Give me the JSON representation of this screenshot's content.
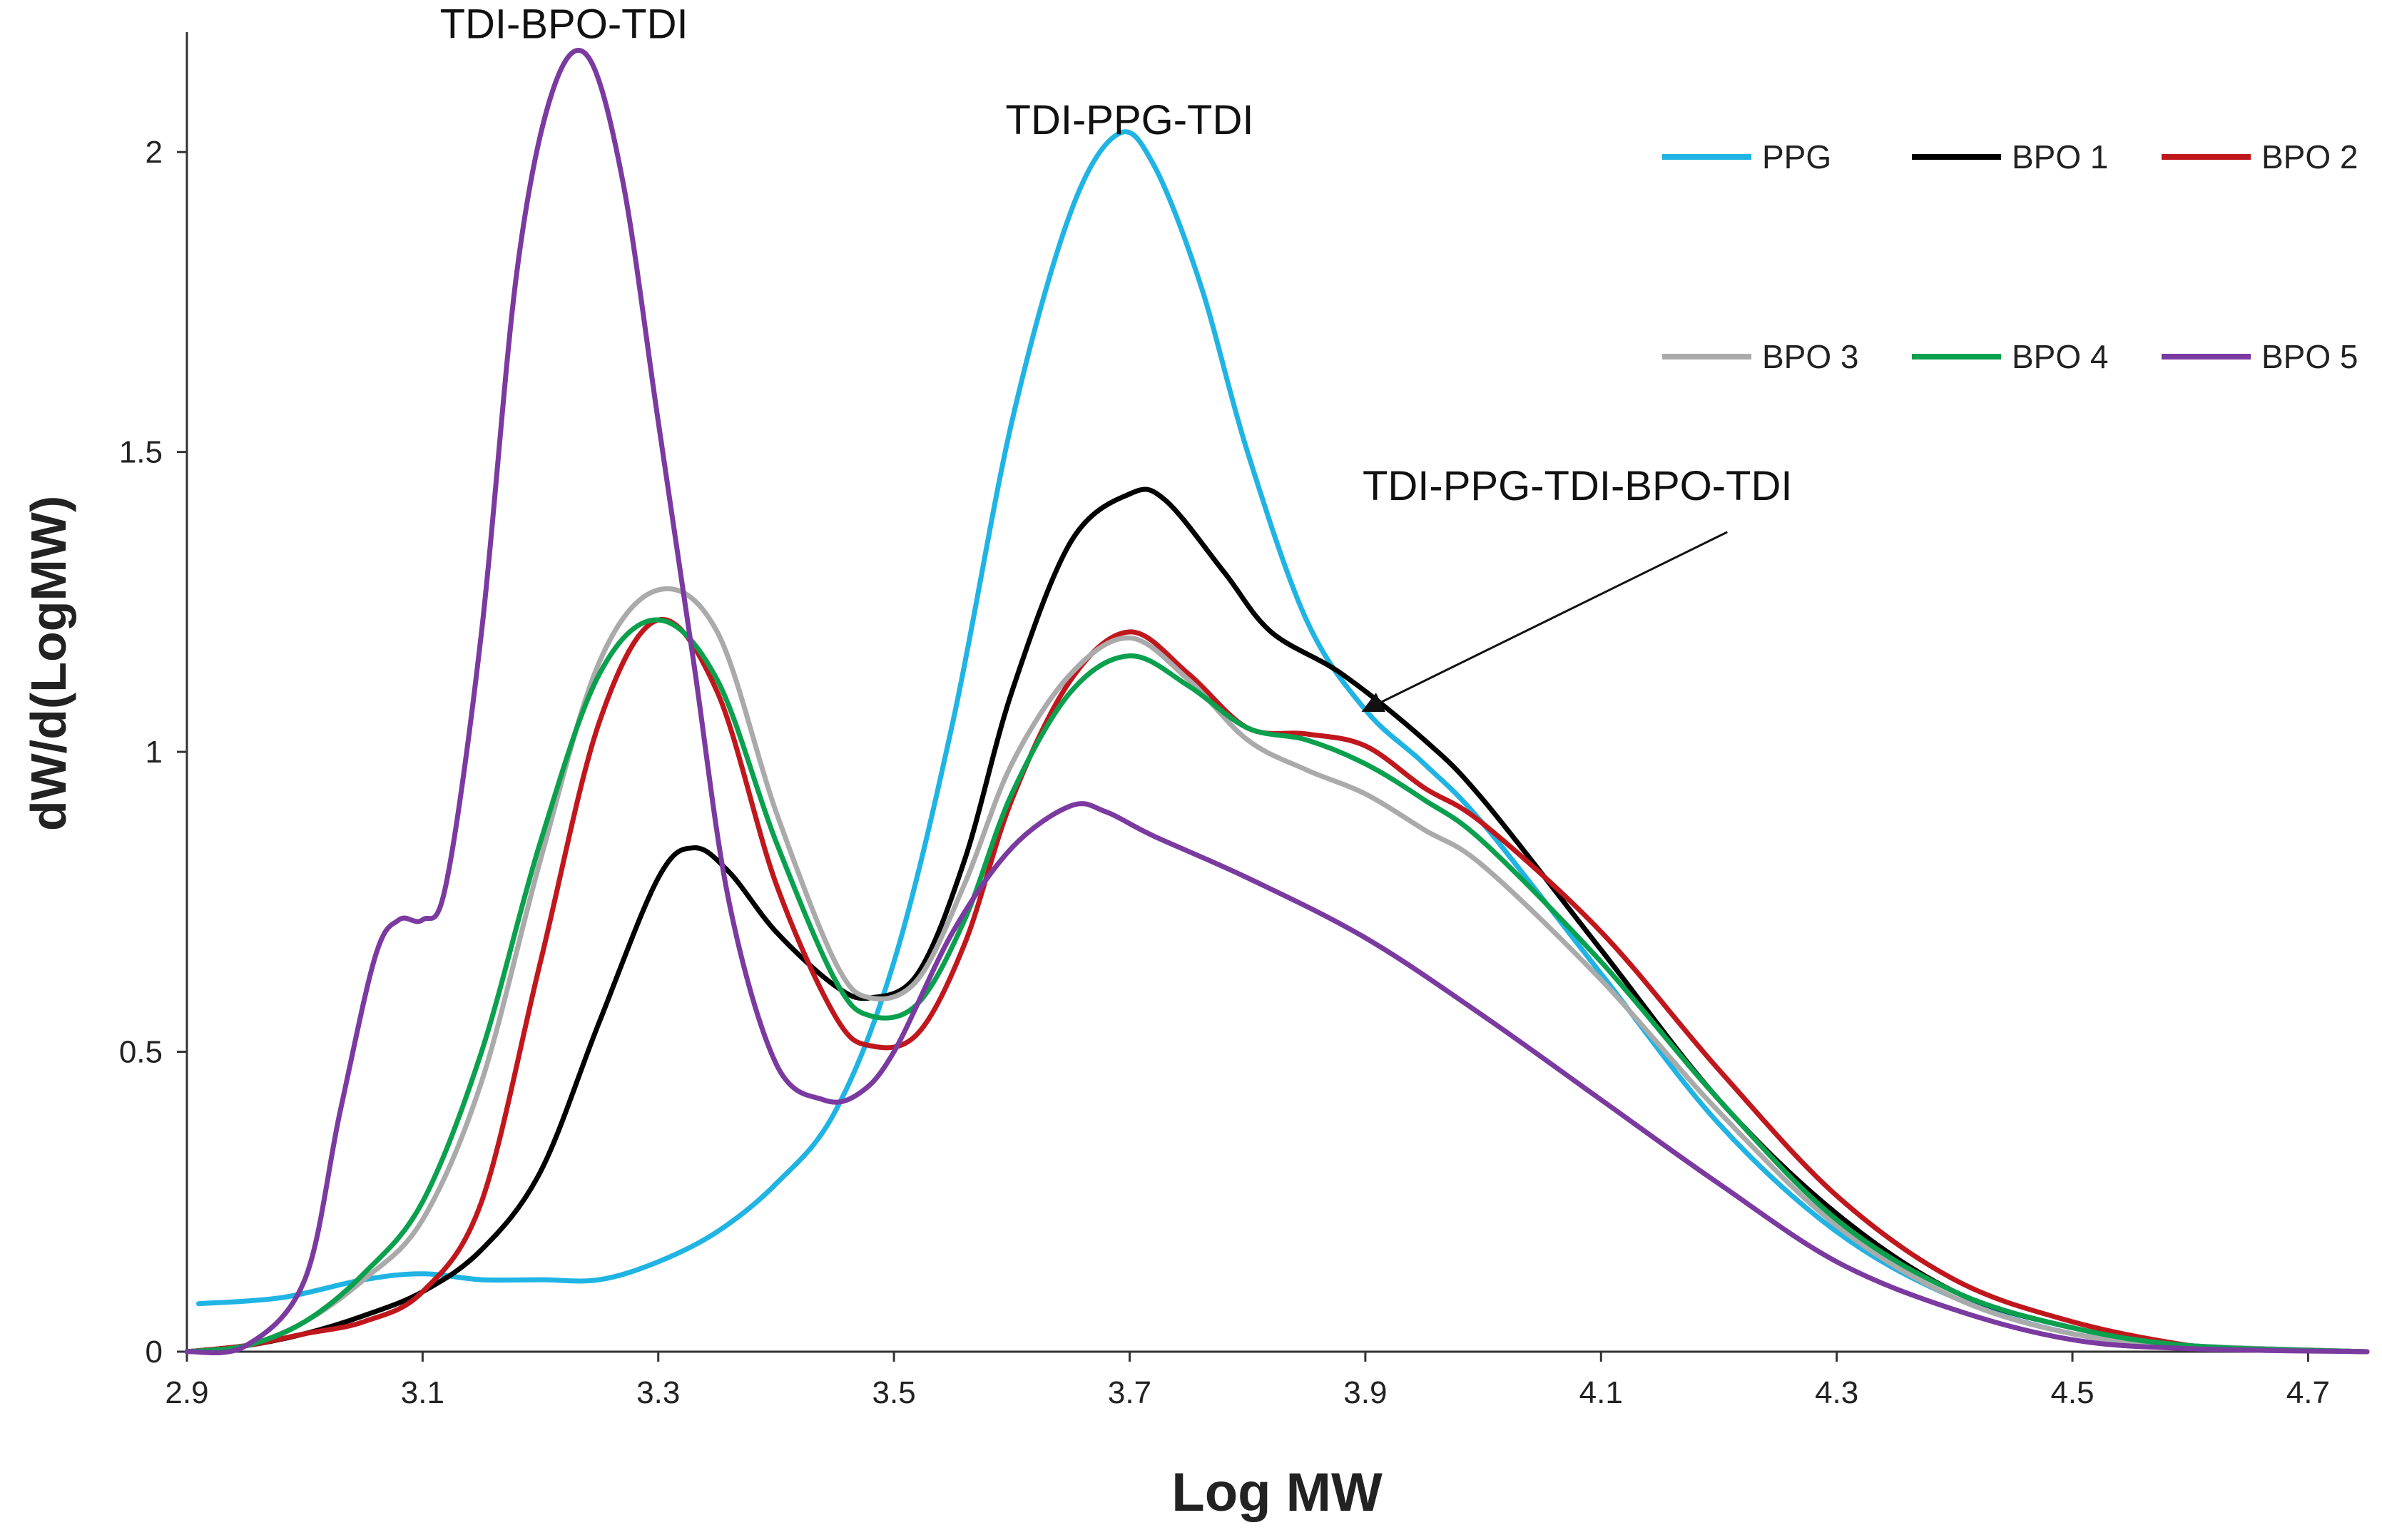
{
  "chart_data": {
    "type": "line",
    "title": "",
    "xlabel": "Log MW",
    "ylabel": "dW/d(LogMW)",
    "xlim": [
      2.9,
      4.75
    ],
    "ylim": [
      0,
      2.2
    ],
    "xticks": [
      2.9,
      3.1,
      3.3,
      3.5,
      3.7,
      3.9,
      4.1,
      4.3,
      4.5,
      4.7
    ],
    "xtick_labels": [
      "2.9",
      "3.1",
      "3.3",
      "3.5",
      "3.7",
      "3.9",
      "4.1",
      "4.3",
      "4.5",
      "4.7"
    ],
    "yticks": [
      0,
      0.5,
      1,
      1.5,
      2
    ],
    "ytick_labels": [
      "0",
      "0.5",
      "1",
      "1.5",
      "2"
    ],
    "grid": false,
    "legend_position": "top-right",
    "annotations": [
      {
        "text": "TDI-BPO-TDI",
        "x": 3.22,
        "y": 2.19
      },
      {
        "text": "TDI-PPG-TDI",
        "x": 3.7,
        "y": 2.03
      },
      {
        "text": "TDI-PPG-TDI-BPO-TDI",
        "x": 4.08,
        "y": 1.42,
        "arrow_to": [
          3.9,
          1.07
        ]
      }
    ],
    "series": [
      {
        "name": "PPG",
        "color": "#1fb4e3",
        "x": [
          2.91,
          2.98,
          3.05,
          3.1,
          3.15,
          3.2,
          3.25,
          3.3,
          3.35,
          3.4,
          3.45,
          3.5,
          3.55,
          3.6,
          3.65,
          3.69,
          3.72,
          3.76,
          3.8,
          3.85,
          3.9,
          3.95,
          4.0,
          4.1,
          4.2,
          4.3,
          4.4,
          4.5,
          4.6,
          4.75
        ],
        "y": [
          0.08,
          0.09,
          0.12,
          0.13,
          0.12,
          0.12,
          0.12,
          0.15,
          0.2,
          0.28,
          0.4,
          0.65,
          1.05,
          1.55,
          1.9,
          2.03,
          1.98,
          1.78,
          1.5,
          1.22,
          1.07,
          0.98,
          0.88,
          0.63,
          0.38,
          0.2,
          0.09,
          0.03,
          0.01,
          0.0
        ]
      },
      {
        "name": "BPO 1",
        "color": "#000000",
        "x": [
          2.9,
          2.95,
          3.0,
          3.05,
          3.1,
          3.15,
          3.2,
          3.25,
          3.3,
          3.33,
          3.36,
          3.4,
          3.45,
          3.48,
          3.52,
          3.56,
          3.6,
          3.65,
          3.7,
          3.73,
          3.78,
          3.82,
          3.88,
          3.95,
          4.0,
          4.1,
          4.2,
          4.3,
          4.4,
          4.5,
          4.6,
          4.75
        ],
        "y": [
          0.0,
          0.01,
          0.03,
          0.06,
          0.1,
          0.17,
          0.3,
          0.55,
          0.79,
          0.84,
          0.8,
          0.7,
          0.61,
          0.59,
          0.63,
          0.82,
          1.1,
          1.35,
          1.43,
          1.42,
          1.3,
          1.2,
          1.13,
          1.02,
          0.92,
          0.67,
          0.42,
          0.23,
          0.1,
          0.04,
          0.01,
          0.0
        ]
      },
      {
        "name": "BPO 2",
        "color": "#c0171d",
        "x": [
          2.9,
          2.95,
          3.0,
          3.05,
          3.1,
          3.15,
          3.2,
          3.25,
          3.3,
          3.35,
          3.4,
          3.45,
          3.48,
          3.52,
          3.56,
          3.6,
          3.65,
          3.7,
          3.75,
          3.8,
          3.85,
          3.9,
          3.95,
          4.0,
          4.1,
          4.2,
          4.3,
          4.4,
          4.5,
          4.6,
          4.65,
          4.75
        ],
        "y": [
          0.0,
          0.01,
          0.03,
          0.05,
          0.1,
          0.25,
          0.65,
          1.05,
          1.22,
          1.1,
          0.78,
          0.56,
          0.51,
          0.53,
          0.68,
          0.92,
          1.12,
          1.2,
          1.13,
          1.04,
          1.03,
          1.01,
          0.94,
          0.88,
          0.7,
          0.47,
          0.26,
          0.12,
          0.05,
          0.01,
          0.005,
          0.0
        ]
      },
      {
        "name": "BPO 3",
        "color": "#aaaaaa",
        "x": [
          2.9,
          2.95,
          3.0,
          3.05,
          3.1,
          3.15,
          3.2,
          3.25,
          3.3,
          3.35,
          3.4,
          3.45,
          3.48,
          3.52,
          3.56,
          3.6,
          3.65,
          3.7,
          3.75,
          3.8,
          3.85,
          3.9,
          3.95,
          4.0,
          4.1,
          4.2,
          4.3,
          4.4,
          4.5,
          4.6,
          4.75
        ],
        "y": [
          0.0,
          0.01,
          0.05,
          0.12,
          0.22,
          0.45,
          0.82,
          1.15,
          1.27,
          1.2,
          0.9,
          0.65,
          0.59,
          0.62,
          0.78,
          0.98,
          1.13,
          1.19,
          1.12,
          1.02,
          0.97,
          0.93,
          0.87,
          0.81,
          0.62,
          0.4,
          0.21,
          0.09,
          0.03,
          0.01,
          0.0
        ]
      },
      {
        "name": "BPO 4",
        "color": "#0aa04e",
        "x": [
          2.9,
          2.95,
          3.0,
          3.05,
          3.1,
          3.15,
          3.2,
          3.25,
          3.3,
          3.35,
          3.4,
          3.45,
          3.48,
          3.52,
          3.56,
          3.6,
          3.65,
          3.7,
          3.75,
          3.8,
          3.85,
          3.9,
          3.95,
          4.0,
          4.1,
          4.2,
          4.3,
          4.4,
          4.5,
          4.6,
          4.75
        ],
        "y": [
          0.0,
          0.01,
          0.05,
          0.13,
          0.25,
          0.5,
          0.85,
          1.13,
          1.22,
          1.12,
          0.85,
          0.62,
          0.56,
          0.58,
          0.72,
          0.93,
          1.1,
          1.16,
          1.11,
          1.04,
          1.02,
          0.98,
          0.92,
          0.85,
          0.65,
          0.42,
          0.22,
          0.1,
          0.04,
          0.01,
          0.0
        ]
      },
      {
        "name": "BPO 5",
        "color": "#7b3aa0",
        "x": [
          2.9,
          2.95,
          3.0,
          3.03,
          3.06,
          3.08,
          3.1,
          3.12,
          3.15,
          3.18,
          3.21,
          3.24,
          3.27,
          3.3,
          3.33,
          3.36,
          3.4,
          3.44,
          3.47,
          3.5,
          3.55,
          3.6,
          3.65,
          3.68,
          3.72,
          3.8,
          3.9,
          4.0,
          4.1,
          4.2,
          4.3,
          4.4,
          4.5,
          4.6,
          4.75
        ],
        "y": [
          0.0,
          0.01,
          0.12,
          0.4,
          0.66,
          0.72,
          0.72,
          0.78,
          1.2,
          1.8,
          2.1,
          2.16,
          1.95,
          1.55,
          1.15,
          0.75,
          0.48,
          0.42,
          0.43,
          0.5,
          0.7,
          0.84,
          0.91,
          0.9,
          0.86,
          0.79,
          0.69,
          0.56,
          0.42,
          0.28,
          0.15,
          0.07,
          0.02,
          0.005,
          0.0
        ]
      }
    ]
  }
}
